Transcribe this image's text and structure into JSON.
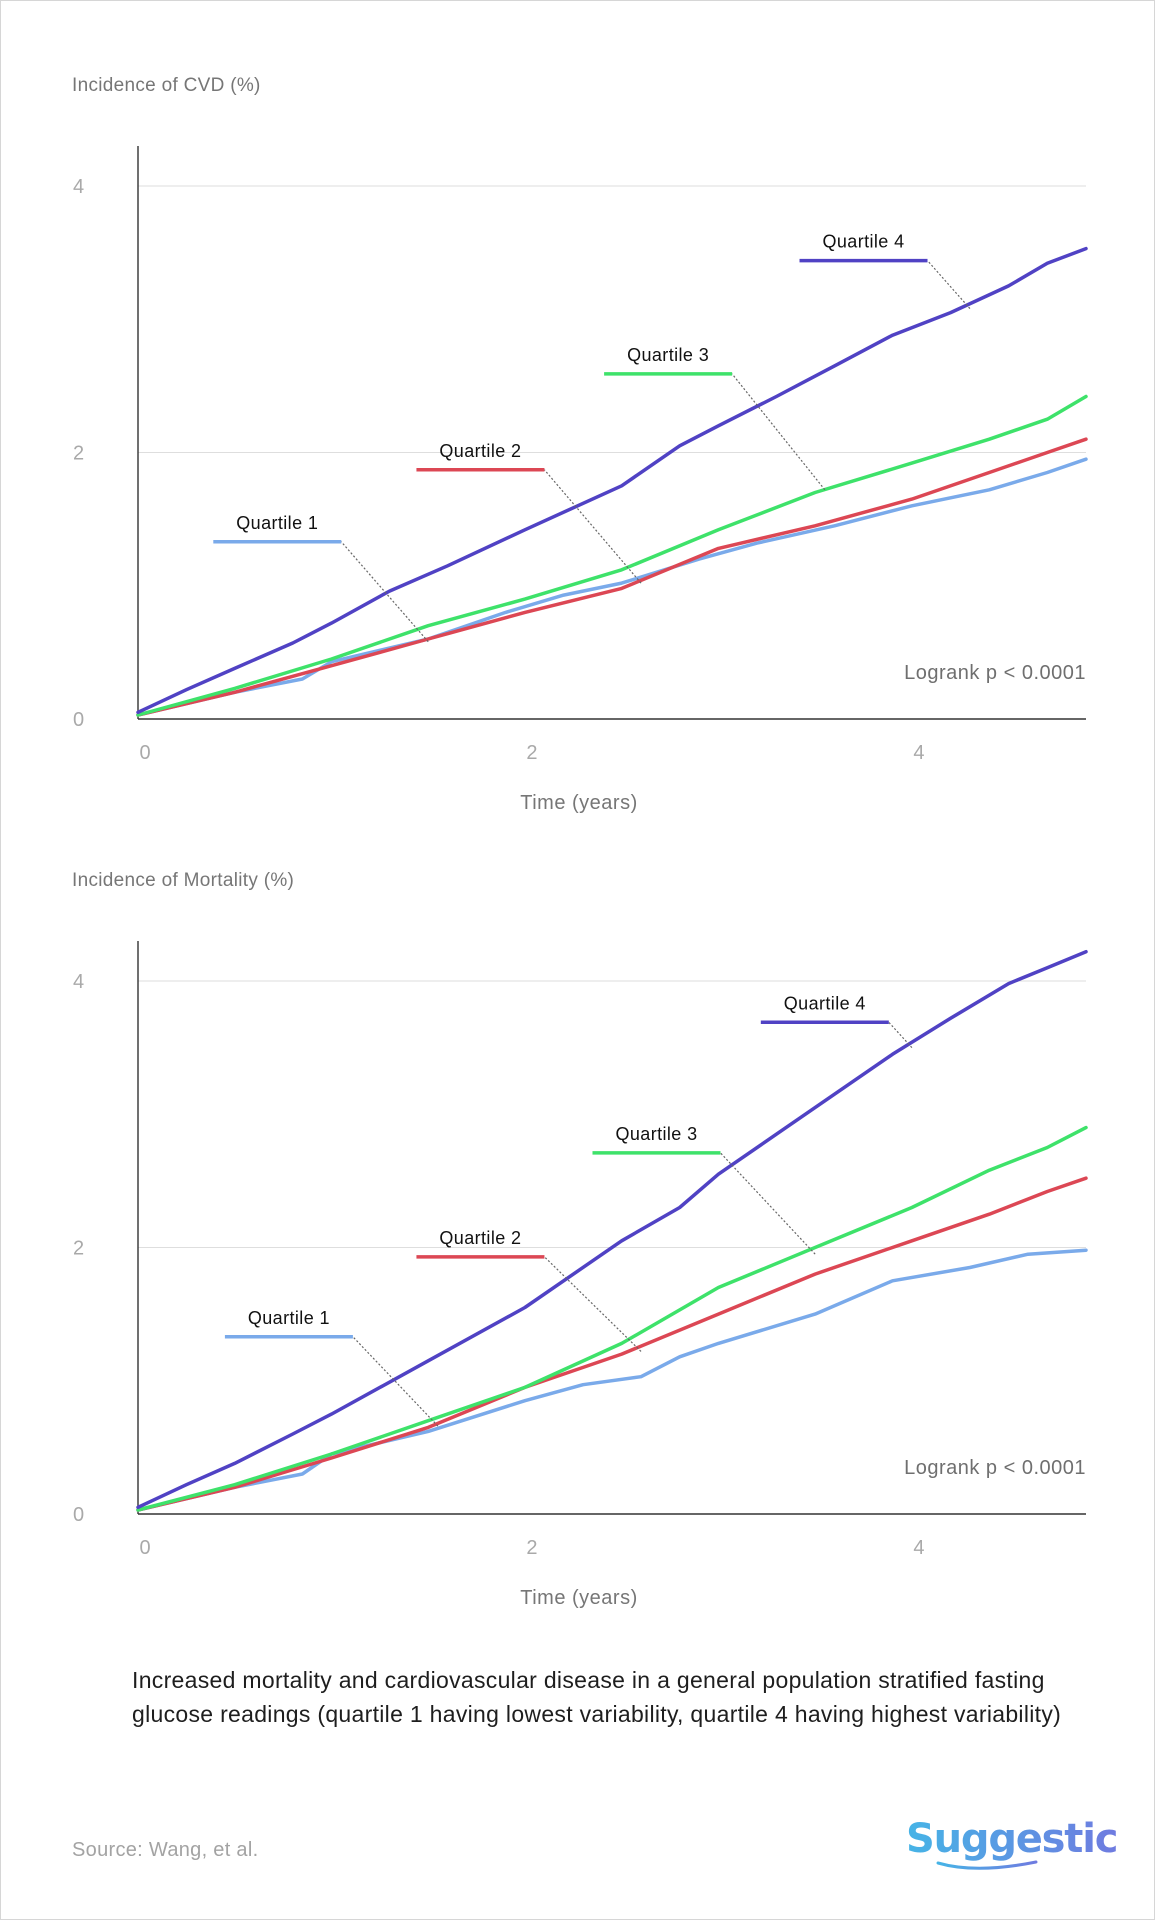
{
  "chart_data": [
    {
      "type": "line",
      "ylabel": "Incidence of CVD (%)",
      "xlabel": "Time (years)",
      "xlim": [
        0,
        4.9
      ],
      "ylim": [
        0,
        4.3
      ],
      "xticks": [
        0,
        2,
        4
      ],
      "yticks": [
        0,
        2,
        4
      ],
      "grid": "horizontal",
      "annotation": "Logrank p < 0.0001",
      "series": [
        {
          "name": "Quartile 1",
          "color": "#7aaaea",
          "x": [
            0,
            0.5,
            0.85,
            1.0,
            1.5,
            1.9,
            2.2,
            2.5,
            2.9,
            3.2,
            3.6,
            4.0,
            4.4,
            4.7,
            4.9
          ],
          "y": [
            0.03,
            0.2,
            0.3,
            0.43,
            0.6,
            0.8,
            0.93,
            1.02,
            1.2,
            1.32,
            1.45,
            1.6,
            1.72,
            1.85,
            1.95
          ]
        },
        {
          "name": "Quartile 2",
          "color": "#dc4754",
          "x": [
            0,
            0.5,
            1.0,
            1.5,
            2.0,
            2.5,
            3.0,
            3.5,
            4.0,
            4.4,
            4.7,
            4.9
          ],
          "y": [
            0.03,
            0.2,
            0.4,
            0.6,
            0.8,
            0.98,
            1.28,
            1.45,
            1.65,
            1.85,
            2.0,
            2.1
          ]
        },
        {
          "name": "Quartile 3",
          "color": "#3ee26a",
          "x": [
            0,
            0.5,
            1.0,
            1.5,
            2.0,
            2.5,
            3.0,
            3.5,
            4.0,
            4.4,
            4.7,
            4.9
          ],
          "y": [
            0.03,
            0.23,
            0.45,
            0.7,
            0.9,
            1.12,
            1.42,
            1.7,
            1.92,
            2.1,
            2.25,
            2.42
          ]
        },
        {
          "name": "Quartile 4",
          "color": "#5042c4",
          "x": [
            0,
            0.25,
            0.5,
            0.8,
            1.0,
            1.3,
            1.6,
            2.0,
            2.5,
            2.8,
            3.0,
            3.3,
            3.6,
            3.9,
            4.2,
            4.5,
            4.7,
            4.9
          ],
          "y": [
            0.05,
            0.22,
            0.38,
            0.57,
            0.72,
            0.96,
            1.15,
            1.42,
            1.75,
            2.05,
            2.2,
            2.42,
            2.65,
            2.88,
            3.05,
            3.25,
            3.42,
            3.53
          ]
        }
      ],
      "labels": [
        {
          "series": "Quartile 1",
          "text": "Quartile 1",
          "x": 0.72,
          "y": 1.33,
          "anchor_x": 1.5,
          "anchor_y": 0.58
        },
        {
          "series": "Quartile 2",
          "text": "Quartile 2",
          "x": 1.77,
          "y": 1.87,
          "anchor_x": 2.6,
          "anchor_y": 1.02
        },
        {
          "series": "Quartile 3",
          "text": "Quartile 3",
          "x": 2.74,
          "y": 2.59,
          "anchor_x": 3.55,
          "anchor_y": 1.72
        },
        {
          "series": "Quartile 4",
          "text": "Quartile 4",
          "x": 3.75,
          "y": 3.44,
          "anchor_x": 4.3,
          "anchor_y": 3.08
        }
      ]
    },
    {
      "type": "line",
      "ylabel": "Incidence of Mortality (%)",
      "xlabel": "Time (years)",
      "xlim": [
        0,
        4.9
      ],
      "ylim": [
        0,
        4.3
      ],
      "xticks": [
        0,
        2,
        4
      ],
      "yticks": [
        0,
        2,
        4
      ],
      "grid": "horizontal",
      "annotation": "Logrank p < 0.0001",
      "series": [
        {
          "name": "Quartile 1",
          "color": "#7aaaea",
          "x": [
            0,
            0.5,
            0.85,
            1.0,
            1.5,
            2.0,
            2.3,
            2.6,
            2.8,
            3.0,
            3.5,
            3.9,
            4.3,
            4.6,
            4.9
          ],
          "y": [
            0.03,
            0.2,
            0.3,
            0.45,
            0.62,
            0.85,
            0.97,
            1.03,
            1.18,
            1.28,
            1.5,
            1.75,
            1.85,
            1.95,
            1.98
          ]
        },
        {
          "name": "Quartile 2",
          "color": "#dc4754",
          "x": [
            0,
            0.5,
            1.0,
            1.5,
            2.0,
            2.5,
            3.0,
            3.5,
            4.0,
            4.4,
            4.7,
            4.9
          ],
          "y": [
            0.03,
            0.2,
            0.42,
            0.65,
            0.95,
            1.2,
            1.5,
            1.8,
            2.05,
            2.25,
            2.42,
            2.52
          ]
        },
        {
          "name": "Quartile 3",
          "color": "#3ee26a",
          "x": [
            0,
            0.5,
            1.0,
            1.5,
            2.0,
            2.5,
            3.0,
            3.5,
            4.0,
            4.4,
            4.7,
            4.9
          ],
          "y": [
            0.03,
            0.22,
            0.45,
            0.7,
            0.95,
            1.28,
            1.7,
            2.0,
            2.3,
            2.58,
            2.75,
            2.9
          ]
        },
        {
          "name": "Quartile 4",
          "color": "#5042c4",
          "x": [
            0,
            0.25,
            0.5,
            0.8,
            1.0,
            1.5,
            2.0,
            2.5,
            2.8,
            3.0,
            3.3,
            3.6,
            3.9,
            4.2,
            4.5,
            4.7,
            4.9
          ],
          "y": [
            0.05,
            0.22,
            0.38,
            0.6,
            0.75,
            1.15,
            1.55,
            2.05,
            2.3,
            2.55,
            2.85,
            3.15,
            3.45,
            3.72,
            3.98,
            4.1,
            4.22
          ]
        }
      ],
      "labels": [
        {
          "series": "Quartile 1",
          "text": "Quartile 1",
          "x": 0.78,
          "y": 1.33,
          "anchor_x": 1.55,
          "anchor_y": 0.66
        },
        {
          "series": "Quartile 2",
          "text": "Quartile 2",
          "x": 1.77,
          "y": 1.93,
          "anchor_x": 2.6,
          "anchor_y": 1.22
        },
        {
          "series": "Quartile 3",
          "text": "Quartile 3",
          "x": 2.68,
          "y": 2.71,
          "anchor_x": 3.5,
          "anchor_y": 1.95
        },
        {
          "series": "Quartile 4",
          "text": "Quartile 4",
          "x": 3.55,
          "y": 3.69,
          "anchor_x": 4.0,
          "anchor_y": 3.5
        }
      ]
    }
  ],
  "caption": "Increased mortality and cardiovascular disease in a general population stratified fasting glucose readings (quartile 1 having lowest variability, quartile 4 having highest variability)",
  "source": "Source: Wang, et al.",
  "brand": {
    "name": "Suggestic",
    "gradient_start": "#46b4e6",
    "gradient_end": "#6f7be0"
  }
}
